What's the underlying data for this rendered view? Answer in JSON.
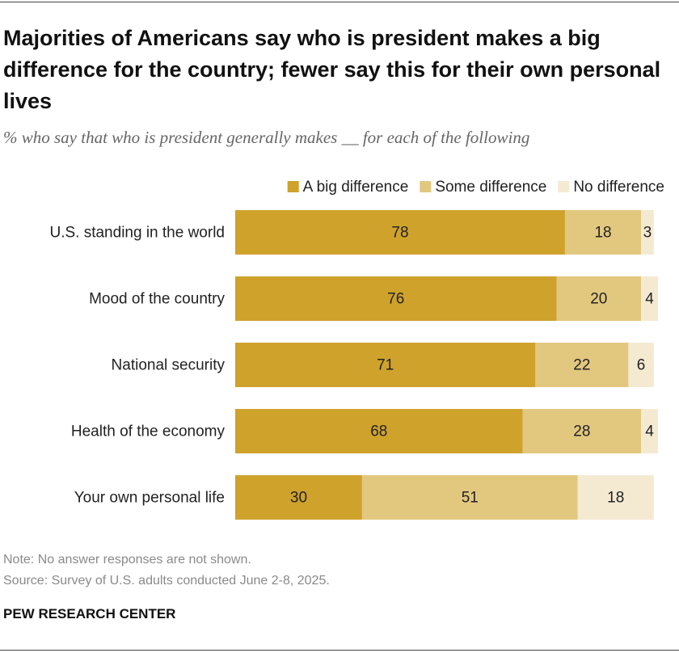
{
  "chart_data": {
    "type": "stacked-bar",
    "title": "Majorities of Americans say who is president makes a big difference for the country; fewer say this for their own personal lives",
    "subtitle": "% who say that who is president generally makes __ for each of the following",
    "categories": [
      "U.S. standing in the world",
      "Mood of the country",
      "National security",
      "Health of the economy",
      "Your own personal life"
    ],
    "series": [
      {
        "name": "A big difference",
        "color": "#cfa22c",
        "values": [
          78,
          76,
          71,
          68,
          30
        ]
      },
      {
        "name": "Some difference",
        "color": "#e2c77f",
        "values": [
          18,
          20,
          22,
          28,
          51
        ]
      },
      {
        "name": "No difference",
        "color": "#f4ead2",
        "values": [
          3,
          4,
          6,
          4,
          18
        ]
      }
    ],
    "note": "Note: No answer responses are not shown.",
    "source": "Source: Survey of U.S. adults conducted June 2-8, 2025.",
    "brand": "PEW RESEARCH CENTER"
  }
}
